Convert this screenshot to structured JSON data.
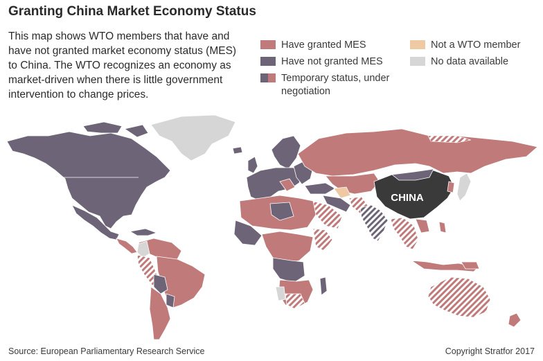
{
  "title": "Granting China Market Economy Status",
  "description": "This map shows WTO members that have and have not granted market economy status (MES) to China. The WTO recognizes an economy as market-driven when there is little government intervention to change prices.",
  "legend": {
    "granted": {
      "label": "Have granted MES",
      "color": "#c07a7a"
    },
    "not_granted": {
      "label": "Have not granted MES",
      "color": "#6e6478"
    },
    "temporary_line1": "Temporary status, under",
    "temporary_line2": "negotiation",
    "not_member": {
      "label": "Not a WTO member",
      "color": "#eec9a3"
    },
    "no_data": {
      "label": "No data available",
      "color": "#d6d6d6"
    }
  },
  "map_labels": {
    "china": "CHINA"
  },
  "colors": {
    "china": "#3a3a3a"
  },
  "source": "Source: European Parliamentary Research Service",
  "copyright": "Copyright Stratfor 2017"
}
